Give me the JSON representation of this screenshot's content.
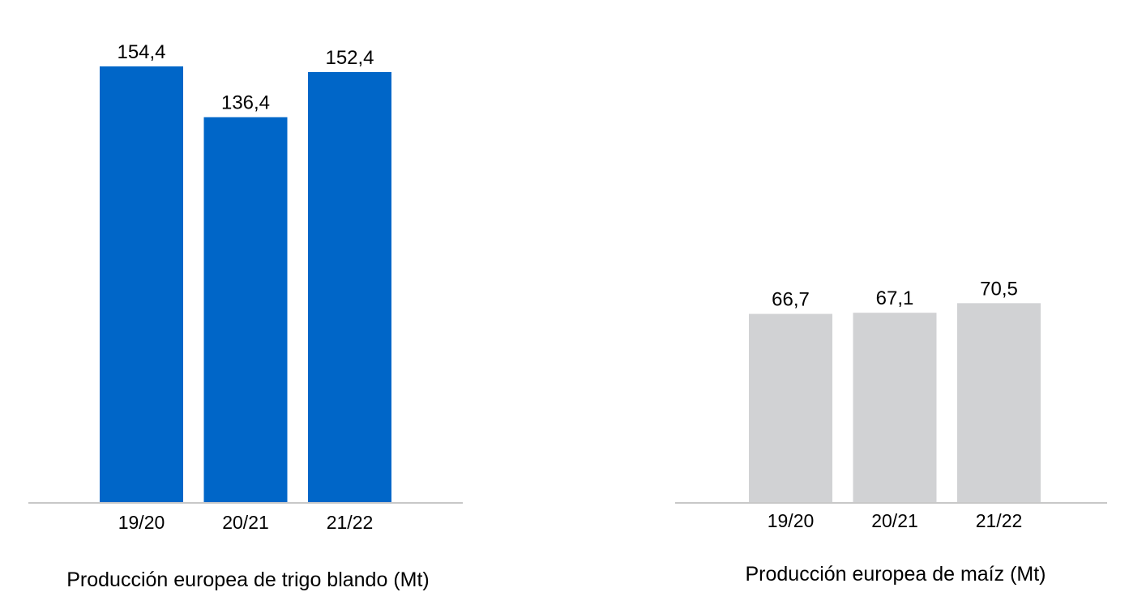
{
  "chart_data": [
    {
      "type": "bar",
      "title": "Producción europea de trigo blando (Mt)",
      "categories": [
        "19/20",
        "20/21",
        "21/22"
      ],
      "values": [
        154.4,
        136.4,
        152.4
      ],
      "value_labels": [
        "154,4",
        "136,4",
        "152,4"
      ],
      "xlabel": "",
      "ylabel": "",
      "ylim": [
        0,
        154.4
      ],
      "grid": false,
      "legend": "none",
      "bar_color": "#0066c8",
      "baseline_color": "#c8c8c8"
    },
    {
      "type": "bar",
      "title": "Producción europea de maíz (Mt)",
      "categories": [
        "19/20",
        "20/21",
        "21/22"
      ],
      "values": [
        66.7,
        67.1,
        70.5
      ],
      "value_labels": [
        "66,7",
        "67,1",
        "70,5"
      ],
      "xlabel": "",
      "ylabel": "",
      "ylim": [
        0,
        154.4
      ],
      "grid": false,
      "legend": "none",
      "bar_color": "#d1d2d4",
      "baseline_color": "#c8c8c8"
    }
  ]
}
